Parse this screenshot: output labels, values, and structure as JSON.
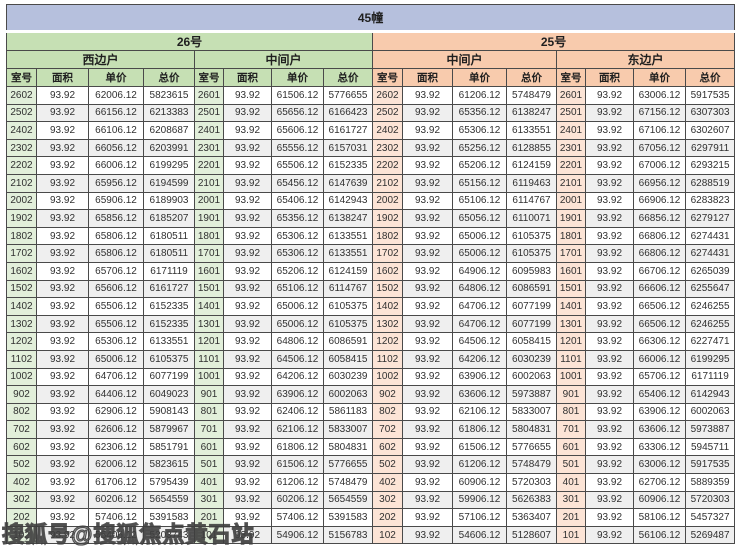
{
  "title": "45幢",
  "watermark": "搜狐号@搜狐焦点黄石站",
  "columns": [
    "室号",
    "面积",
    "单价",
    "总价"
  ],
  "colors": {
    "title_bg": "#b6c0dd",
    "green_header": "#c6e0b4",
    "green_room": "#e2efda",
    "orange_header": "#f8cbad",
    "orange_room": "#fce4d6",
    "stripe": "#efefef",
    "border": "#4a4a4a"
  },
  "sections": [
    {
      "building": "26号",
      "units": [
        {
          "name": "西边户",
          "rows": [
            [
              "2602",
              "93.92",
              "62006.12",
              "5823615"
            ],
            [
              "2502",
              "93.92",
              "66156.12",
              "6213383"
            ],
            [
              "2402",
              "93.92",
              "66106.12",
              "6208687"
            ],
            [
              "2302",
              "93.92",
              "66056.12",
              "6203991"
            ],
            [
              "2202",
              "93.92",
              "66006.12",
              "6199295"
            ],
            [
              "2102",
              "93.92",
              "65956.12",
              "6194599"
            ],
            [
              "2002",
              "93.92",
              "65906.12",
              "6189903"
            ],
            [
              "1902",
              "93.92",
              "65856.12",
              "6185207"
            ],
            [
              "1802",
              "93.92",
              "65806.12",
              "6180511"
            ],
            [
              "1702",
              "93.92",
              "65806.12",
              "6180511"
            ],
            [
              "1602",
              "93.92",
              "65706.12",
              "6171119"
            ],
            [
              "1502",
              "93.92",
              "65606.12",
              "6161727"
            ],
            [
              "1402",
              "93.92",
              "65506.12",
              "6152335"
            ],
            [
              "1302",
              "93.92",
              "65506.12",
              "6152335"
            ],
            [
              "1202",
              "93.92",
              "65306.12",
              "6133551"
            ],
            [
              "1102",
              "93.92",
              "65006.12",
              "6105375"
            ],
            [
              "1002",
              "93.92",
              "64706.12",
              "6077199"
            ],
            [
              "902",
              "93.92",
              "64406.12",
              "6049023"
            ],
            [
              "802",
              "93.92",
              "62906.12",
              "5908143"
            ],
            [
              "702",
              "93.92",
              "62606.12",
              "5879967"
            ],
            [
              "602",
              "93.92",
              "62306.12",
              "5851791"
            ],
            [
              "502",
              "93.92",
              "62006.12",
              "5823615"
            ],
            [
              "402",
              "93.92",
              "61706.12",
              "5795439"
            ],
            [
              "302",
              "93.92",
              "60206.12",
              "5654559"
            ],
            [
              "202",
              "93.92",
              "57406.12",
              "5391583"
            ],
            [
              "102",
              "93.92",
              "55406.12",
              "5203743"
            ]
          ]
        },
        {
          "name": "中间户",
          "rows": [
            [
              "2601",
              "93.92",
              "61506.12",
              "5776655"
            ],
            [
              "2501",
              "93.92",
              "65656.12",
              "6166423"
            ],
            [
              "2401",
              "93.92",
              "65606.12",
              "6161727"
            ],
            [
              "2301",
              "93.92",
              "65556.12",
              "6157031"
            ],
            [
              "2201",
              "93.92",
              "65506.12",
              "6152335"
            ],
            [
              "2101",
              "93.92",
              "65456.12",
              "6147639"
            ],
            [
              "2001",
              "93.92",
              "65406.12",
              "6142943"
            ],
            [
              "1901",
              "93.92",
              "65356.12",
              "6138247"
            ],
            [
              "1801",
              "93.92",
              "65306.12",
              "6133551"
            ],
            [
              "1701",
              "93.92",
              "65306.12",
              "6133551"
            ],
            [
              "1601",
              "93.92",
              "65206.12",
              "6124159"
            ],
            [
              "1501",
              "93.92",
              "65106.12",
              "6114767"
            ],
            [
              "1401",
              "93.92",
              "65006.12",
              "6105375"
            ],
            [
              "1301",
              "93.92",
              "65006.12",
              "6105375"
            ],
            [
              "1201",
              "93.92",
              "64806.12",
              "6086591"
            ],
            [
              "1101",
              "93.92",
              "64506.12",
              "6058415"
            ],
            [
              "1001",
              "93.92",
              "64206.12",
              "6030239"
            ],
            [
              "901",
              "93.92",
              "63906.12",
              "6002063"
            ],
            [
              "801",
              "93.92",
              "62406.12",
              "5861183"
            ],
            [
              "701",
              "93.92",
              "62106.12",
              "5833007"
            ],
            [
              "601",
              "93.92",
              "61806.12",
              "5804831"
            ],
            [
              "501",
              "93.92",
              "61506.12",
              "5776655"
            ],
            [
              "401",
              "93.92",
              "61206.12",
              "5748479"
            ],
            [
              "301",
              "93.92",
              "60206.12",
              "5654559"
            ],
            [
              "201",
              "93.92",
              "57406.12",
              "5391583"
            ],
            [
              "101",
              "93.92",
              "54906.12",
              "5156783"
            ]
          ]
        }
      ]
    },
    {
      "building": "25号",
      "units": [
        {
          "name": "中间户",
          "rows": [
            [
              "2602",
              "93.92",
              "61206.12",
              "5748479"
            ],
            [
              "2502",
              "93.92",
              "65356.12",
              "6138247"
            ],
            [
              "2402",
              "93.92",
              "65306.12",
              "6133551"
            ],
            [
              "2302",
              "93.92",
              "65256.12",
              "6128855"
            ],
            [
              "2202",
              "93.92",
              "65206.12",
              "6124159"
            ],
            [
              "2102",
              "93.92",
              "65156.12",
              "6119463"
            ],
            [
              "2002",
              "93.92",
              "65106.12",
              "6114767"
            ],
            [
              "1902",
              "93.92",
              "65056.12",
              "6110071"
            ],
            [
              "1802",
              "93.92",
              "65006.12",
              "6105375"
            ],
            [
              "1702",
              "93.92",
              "65006.12",
              "6105375"
            ],
            [
              "1602",
              "93.92",
              "64906.12",
              "6095983"
            ],
            [
              "1502",
              "93.92",
              "64806.12",
              "6086591"
            ],
            [
              "1402",
              "93.92",
              "64706.12",
              "6077199"
            ],
            [
              "1302",
              "93.92",
              "64706.12",
              "6077199"
            ],
            [
              "1202",
              "93.92",
              "64506.12",
              "6058415"
            ],
            [
              "1102",
              "93.92",
              "64206.12",
              "6030239"
            ],
            [
              "1002",
              "93.92",
              "63906.12",
              "6002063"
            ],
            [
              "902",
              "93.92",
              "63606.12",
              "5973887"
            ],
            [
              "802",
              "93.92",
              "62106.12",
              "5833007"
            ],
            [
              "702",
              "93.92",
              "61806.12",
              "5804831"
            ],
            [
              "602",
              "93.92",
              "61506.12",
              "5776655"
            ],
            [
              "502",
              "93.92",
              "61206.12",
              "5748479"
            ],
            [
              "402",
              "93.92",
              "60906.12",
              "5720303"
            ],
            [
              "302",
              "93.92",
              "59906.12",
              "5626383"
            ],
            [
              "202",
              "93.92",
              "57106.12",
              "5363407"
            ],
            [
              "102",
              "93.92",
              "54606.12",
              "5128607"
            ]
          ]
        },
        {
          "name": "东边户",
          "rows": [
            [
              "2601",
              "93.92",
              "63006.12",
              "5917535"
            ],
            [
              "2501",
              "93.92",
              "67156.12",
              "6307303"
            ],
            [
              "2401",
              "93.92",
              "67106.12",
              "6302607"
            ],
            [
              "2301",
              "93.92",
              "67056.12",
              "6297911"
            ],
            [
              "2201",
              "93.92",
              "67006.12",
              "6293215"
            ],
            [
              "2101",
              "93.92",
              "66956.12",
              "6288519"
            ],
            [
              "2001",
              "93.92",
              "66906.12",
              "6283823"
            ],
            [
              "1901",
              "93.92",
              "66856.12",
              "6279127"
            ],
            [
              "1801",
              "93.92",
              "66806.12",
              "6274431"
            ],
            [
              "1701",
              "93.92",
              "66806.12",
              "6274431"
            ],
            [
              "1601",
              "93.92",
              "66706.12",
              "6265039"
            ],
            [
              "1501",
              "93.92",
              "66606.12",
              "6255647"
            ],
            [
              "1401",
              "93.92",
              "66506.12",
              "6246255"
            ],
            [
              "1301",
              "93.92",
              "66506.12",
              "6246255"
            ],
            [
              "1201",
              "93.92",
              "66306.12",
              "6227471"
            ],
            [
              "1101",
              "93.92",
              "66006.12",
              "6199295"
            ],
            [
              "1001",
              "93.92",
              "65706.12",
              "6171119"
            ],
            [
              "901",
              "93.92",
              "65406.12",
              "6142943"
            ],
            [
              "801",
              "93.92",
              "63906.12",
              "6002063"
            ],
            [
              "701",
              "93.92",
              "63606.12",
              "5973887"
            ],
            [
              "601",
              "93.92",
              "63306.12",
              "5945711"
            ],
            [
              "501",
              "93.92",
              "63006.12",
              "5917535"
            ],
            [
              "401",
              "93.92",
              "62706.12",
              "5889359"
            ],
            [
              "301",
              "93.92",
              "60906.12",
              "5720303"
            ],
            [
              "201",
              "93.92",
              "58106.12",
              "5457327"
            ],
            [
              "101",
              "93.92",
              "56106.12",
              "5269487"
            ]
          ]
        }
      ]
    }
  ]
}
